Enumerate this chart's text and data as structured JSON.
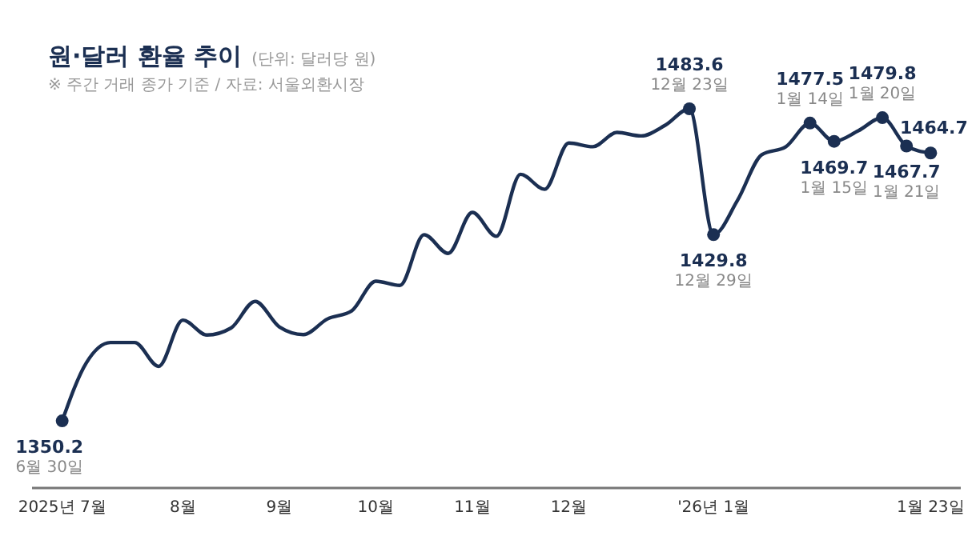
{
  "chart_data": {
    "type": "line",
    "title": "원·달러 환율 추이",
    "subtitle": "(단위: 달러당 원)",
    "annotations": [
      "※ 주간 거래 종가 기준 / 자료: 서울외환시장",
      {
        "text": "6월 30일",
        "y": 1350.2
      },
      {
        "text": "12월 23일",
        "y": 1483.6
      },
      {
        "text": "12월 29일",
        "y": 1429.8
      },
      {
        "text": "1월 14일",
        "y": 1477.5
      },
      {
        "text": "1월 15일",
        "y": 1469.7
      },
      {
        "text": "1월 20일",
        "y": 1479.8
      },
      {
        "text": "1월 21일",
        "y": 1467.7
      }
    ],
    "categories": [
      "2025년 7월",
      null,
      null,
      null,
      null,
      "8월",
      null,
      null,
      null,
      "9월",
      null,
      null,
      null,
      "10월",
      null,
      null,
      null,
      "11월",
      null,
      null,
      null,
      "12월",
      null,
      null,
      null,
      null,
      null,
      "'26년 1월",
      null,
      null,
      null,
      null,
      null,
      null,
      null,
      null,
      "1월 23일"
    ],
    "series": [
      {
        "color": "#1b2f52",
        "values": [
          1350.2,
          1375.0,
          1383.7,
          1383.7,
          1373.5,
          1393.3,
          1386.9,
          1389.9,
          1401.3,
          1390.4,
          1387.1,
          1393.8,
          1397.2,
          1409.9,
          1408.1,
          1429.8,
          1421.8,
          1439.3,
          1429.1,
          1455.6,
          1449.2,
          1469.0,
          1467.4,
          1473.5,
          1472.0,
          1476.6,
          1483.6,
          1429.8,
          1444.6,
          1464.0,
          1467.4,
          1477.5,
          1469.7,
          1474.2,
          1479.8,
          1467.7,
          1464.7
        ],
        "value_labels": [
          "1350.2",
          null,
          null,
          null,
          null,
          null,
          null,
          null,
          null,
          null,
          null,
          null,
          null,
          null,
          null,
          null,
          null,
          null,
          null,
          null,
          null,
          null,
          null,
          null,
          null,
          null,
          "1483.6",
          "1429.8",
          null,
          null,
          null,
          "1477.5",
          "1469.7",
          null,
          "1479.8",
          "1467.7",
          "1464.7"
        ]
      }
    ],
    "line_style": "solid",
    "tick_labels": "x"
  }
}
